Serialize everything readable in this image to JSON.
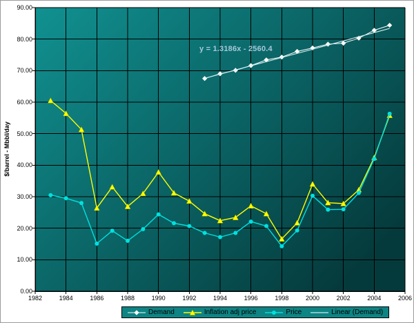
{
  "chart_data": {
    "type": "line",
    "title": "",
    "xlabel": "",
    "ylabel": "$/barrel - Mbbl/day",
    "xlim": [
      1982,
      2006
    ],
    "ylim": [
      0,
      90
    ],
    "grid": true,
    "legend_position": "bottom",
    "plot_bg_gradient": [
      "#119191",
      "#053a3c"
    ],
    "grid_color": "#000000",
    "axis_color": "#000000",
    "legend_bg": "#0e8484",
    "annotation": {
      "text": "y = 1.3186x - 2560.4",
      "color": "#a8c8da"
    },
    "x_ticks": [
      {
        "v": 1982,
        "label": "1982"
      },
      {
        "v": 1984,
        "label": "1984"
      },
      {
        "v": 1986,
        "label": "1986"
      },
      {
        "v": 1988,
        "label": "1988"
      },
      {
        "v": 1990,
        "label": "1990"
      },
      {
        "v": 1992,
        "label": "1992"
      },
      {
        "v": 1994,
        "label": "1994"
      },
      {
        "v": 1996,
        "label": "1996"
      },
      {
        "v": 1998,
        "label": "1998"
      },
      {
        "v": 2000,
        "label": "2000"
      },
      {
        "v": 2002,
        "label": "2002"
      },
      {
        "v": 2004,
        "label": "2004"
      },
      {
        "v": 2006,
        "label": "2006"
      }
    ],
    "y_ticks": [
      {
        "v": 0,
        "label": "0.00"
      },
      {
        "v": 10,
        "label": "10.00"
      },
      {
        "v": 20,
        "label": "20.00"
      },
      {
        "v": 30,
        "label": "30.00"
      },
      {
        "v": 40,
        "label": "40.00"
      },
      {
        "v": 50,
        "label": "50.00"
      },
      {
        "v": 60,
        "label": "60.00"
      },
      {
        "v": 70,
        "label": "70.00"
      },
      {
        "v": 80,
        "label": "80.00"
      },
      {
        "v": 90,
        "label": "90.00"
      }
    ],
    "series": [
      {
        "name": "Demand",
        "color": "#ffffff",
        "marker": "diamond",
        "x": [
          1993,
          1994,
          1995,
          1996,
          1997,
          1998,
          1999,
          2000,
          2001,
          2002,
          2003,
          2004,
          2005
        ],
        "values": [
          67.5,
          69.0,
          70.1,
          71.6,
          73.4,
          74.3,
          76.1,
          77.2,
          78.4,
          78.7,
          80.3,
          82.8,
          84.4
        ]
      },
      {
        "name": "Inflation adj price",
        "color": "#ffff00",
        "marker": "triangle",
        "x": [
          1983,
          1984,
          1985,
          1986,
          1987,
          1988,
          1989,
          1990,
          1991,
          1992,
          1993,
          1994,
          1995,
          1996,
          1997,
          1998,
          1999,
          2000,
          2001,
          2002,
          2003,
          2004,
          2005
        ],
        "values": [
          60.5,
          56.4,
          51.3,
          26.4,
          33.1,
          26.9,
          31.0,
          37.8,
          31.2,
          28.6,
          24.6,
          22.4,
          23.4,
          27.1,
          24.6,
          16.6,
          21.7,
          34.0,
          28.1,
          27.8,
          32.2,
          42.4,
          55.8
        ]
      },
      {
        "name": "Price",
        "color": "#00e0e0",
        "marker": "circle",
        "x": [
          1983,
          1984,
          1985,
          1986,
          1987,
          1988,
          1989,
          1990,
          1991,
          1992,
          1993,
          1994,
          1995,
          1996,
          1997,
          1998,
          1999,
          2000,
          2001,
          2002,
          2003,
          2004,
          2005
        ],
        "values": [
          30.5,
          29.5,
          28.0,
          15.1,
          19.2,
          16.0,
          19.7,
          24.4,
          21.6,
          20.7,
          18.5,
          17.2,
          18.5,
          22.1,
          20.7,
          14.3,
          19.3,
          30.3,
          25.9,
          26.0,
          31.2,
          42.0,
          56.3
        ]
      },
      {
        "name": "Linear (Demand)",
        "color": "#cfe9ee",
        "marker": "none",
        "trend": {
          "slope": 1.3186,
          "intercept": -2560.4,
          "x_range": [
            1993,
            2005
          ]
        }
      }
    ]
  }
}
